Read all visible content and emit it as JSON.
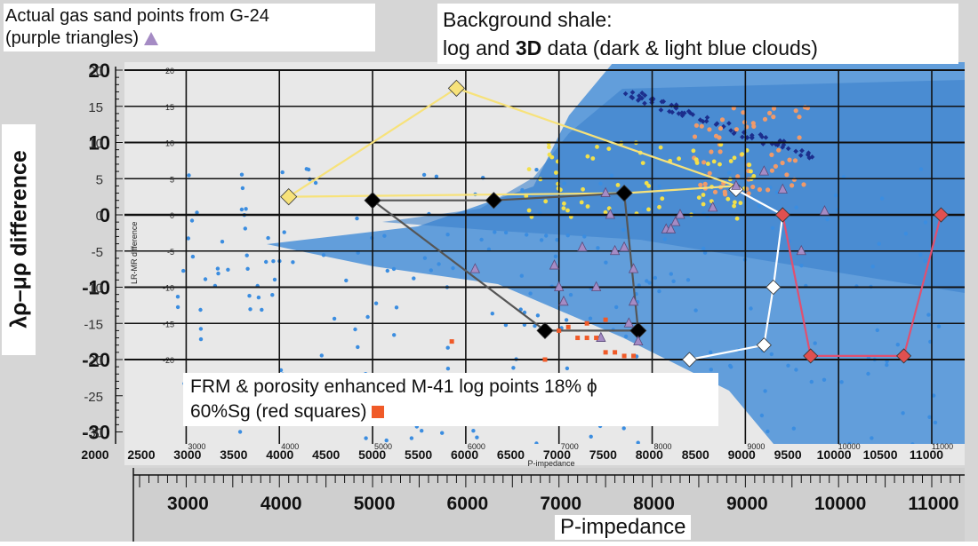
{
  "annotations": {
    "gas_line1": "Actual gas sand points from G-24",
    "gas_line2": "(purple triangles)",
    "shale_line1": "Background shale:",
    "shale_line2_a": "log and ",
    "shale_line2_b": "3D",
    "shale_line2_c": " data (dark & light blue clouds)",
    "frm_line1": "FRM & porosity enhanced M-41 log points 18% ϕ",
    "frm_line2": "60%Sg (red squares)"
  },
  "chart_data": {
    "type": "scatter",
    "title": "",
    "xlabel": "P-impedance",
    "ylabel": "λρ–μρ difference",
    "inner_xlabel": "P-impedance",
    "inner_ylabel": "LR-MR difference",
    "xlim": [
      2000,
      11500
    ],
    "ylim": [
      -30,
      20
    ],
    "outer_x_ticks": [
      "3000",
      "4000",
      "5000",
      "6000",
      "7000",
      "8000",
      "9000",
      "10000",
      "11000"
    ],
    "outer_x_tick_values": [
      3000,
      4000,
      5000,
      6000,
      7000,
      8000,
      9000,
      10000,
      11000
    ],
    "outer_y_ticks": [
      "20",
      "10",
      "0",
      "-10",
      "-20",
      "-30"
    ],
    "outer_y_tick_values": [
      20,
      10,
      0,
      -10,
      -20,
      -30
    ],
    "inner_x_ticks": [
      "2000",
      "2500",
      "3000",
      "3500",
      "4000",
      "4500",
      "5000",
      "5500",
      "6000",
      "6500",
      "7000",
      "7500",
      "8000",
      "8500",
      "9000",
      "9500",
      "10000",
      "10500",
      "11000"
    ],
    "inner_x_tick_values": [
      2000,
      2500,
      3000,
      3500,
      4000,
      4500,
      5000,
      5500,
      6000,
      6500,
      7000,
      7500,
      8000,
      8500,
      9000,
      9500,
      10000,
      10500,
      11000
    ],
    "inner_y_ticks": [
      "20",
      "15",
      "10",
      "5",
      "0",
      "-5",
      "-10",
      "-15",
      "-20",
      "-25",
      "-30"
    ],
    "inner_y_tick_values": [
      20,
      15,
      10,
      5,
      0,
      -5,
      -10,
      -15,
      -20,
      -25,
      -30
    ],
    "small_inner_x_ticks": [
      "3000",
      "4000",
      "5000",
      "6000",
      "7000",
      "8000",
      "9000",
      "10000",
      "11000"
    ],
    "small_inner_x_tick_values": [
      3000,
      4000,
      5000,
      6000,
      7000,
      8000,
      9000,
      10000,
      11000
    ],
    "small_inner_y_ticks": [
      "20",
      "15",
      "10",
      "5",
      "0",
      "-5",
      "-10",
      "-15",
      "-20"
    ],
    "small_inner_y_tick_values": [
      20,
      15,
      10,
      5,
      0,
      -5,
      -10,
      -15,
      -20
    ],
    "colors": {
      "background_cloud": "#4a90d8",
      "light_blue_points": "#3b8de0",
      "dark_blue_points": "#1c2e8c",
      "gas_triangles": "#a58bc4",
      "red_squares": "#f05a28",
      "yellow_points": "#f2e04a",
      "orange_points": "#f09a6a",
      "yellow_polygon": "#f7e27a",
      "black_polygon": "#555555",
      "white_polygon": "#ffffff",
      "pink_polygon": "#e05070"
    },
    "series": [
      {
        "name": "purple triangles",
        "marker": "triangle",
        "points": [
          [
            6100,
            -7.5
          ],
          [
            6950,
            -7
          ],
          [
            7000,
            -10
          ],
          [
            7050,
            -12
          ],
          [
            7250,
            -4.5
          ],
          [
            7400,
            -10
          ],
          [
            7450,
            -17
          ],
          [
            7500,
            3
          ],
          [
            7550,
            0
          ],
          [
            7600,
            -5
          ],
          [
            7700,
            -4.5
          ],
          [
            7750,
            -15
          ],
          [
            7800,
            -12
          ],
          [
            7800,
            -7.5
          ],
          [
            7850,
            -17.5
          ],
          [
            8150,
            -2
          ],
          [
            8250,
            -1
          ],
          [
            8200,
            -2
          ],
          [
            8300,
            0
          ],
          [
            8650,
            1
          ],
          [
            8900,
            4
          ],
          [
            9200,
            6
          ],
          [
            9400,
            3.5
          ],
          [
            9600,
            -5
          ],
          [
            9850,
            0.5
          ]
        ]
      },
      {
        "name": "red squares",
        "marker": "square",
        "points": [
          [
            5850,
            -17.5
          ],
          [
            6850,
            -20
          ],
          [
            7100,
            -15.5
          ],
          [
            7200,
            -17
          ],
          [
            7300,
            -17
          ],
          [
            7400,
            -17
          ],
          [
            7500,
            -19
          ],
          [
            7600,
            -19
          ],
          [
            7700,
            -19.5
          ],
          [
            7800,
            -19.5
          ],
          [
            7500,
            -14.5
          ],
          [
            7300,
            -15
          ],
          [
            7000,
            -16
          ]
        ]
      },
      {
        "name": "yellow polygon",
        "marker": "diamond",
        "points": [
          [
            4100,
            2.5
          ],
          [
            5900,
            17.5
          ],
          [
            8900,
            4
          ],
          [
            7700,
            3
          ]
        ]
      },
      {
        "name": "black polygon",
        "marker": "diamond",
        "points": [
          [
            5000,
            2
          ],
          [
            6300,
            2
          ],
          [
            7700,
            3
          ],
          [
            7850,
            -16
          ],
          [
            6850,
            -16
          ]
        ]
      },
      {
        "name": "white polygon",
        "marker": "diamond",
        "points": [
          [
            8900,
            3.5
          ],
          [
            9400,
            0
          ],
          [
            9300,
            -10
          ],
          [
            9200,
            -18
          ],
          [
            8400,
            -20
          ]
        ]
      },
      {
        "name": "pink polygon",
        "marker": "diamond",
        "points": [
          [
            9400,
            0
          ],
          [
            9700,
            -19.5
          ],
          [
            10700,
            -19.5
          ],
          [
            11100,
            0
          ]
        ]
      }
    ]
  }
}
